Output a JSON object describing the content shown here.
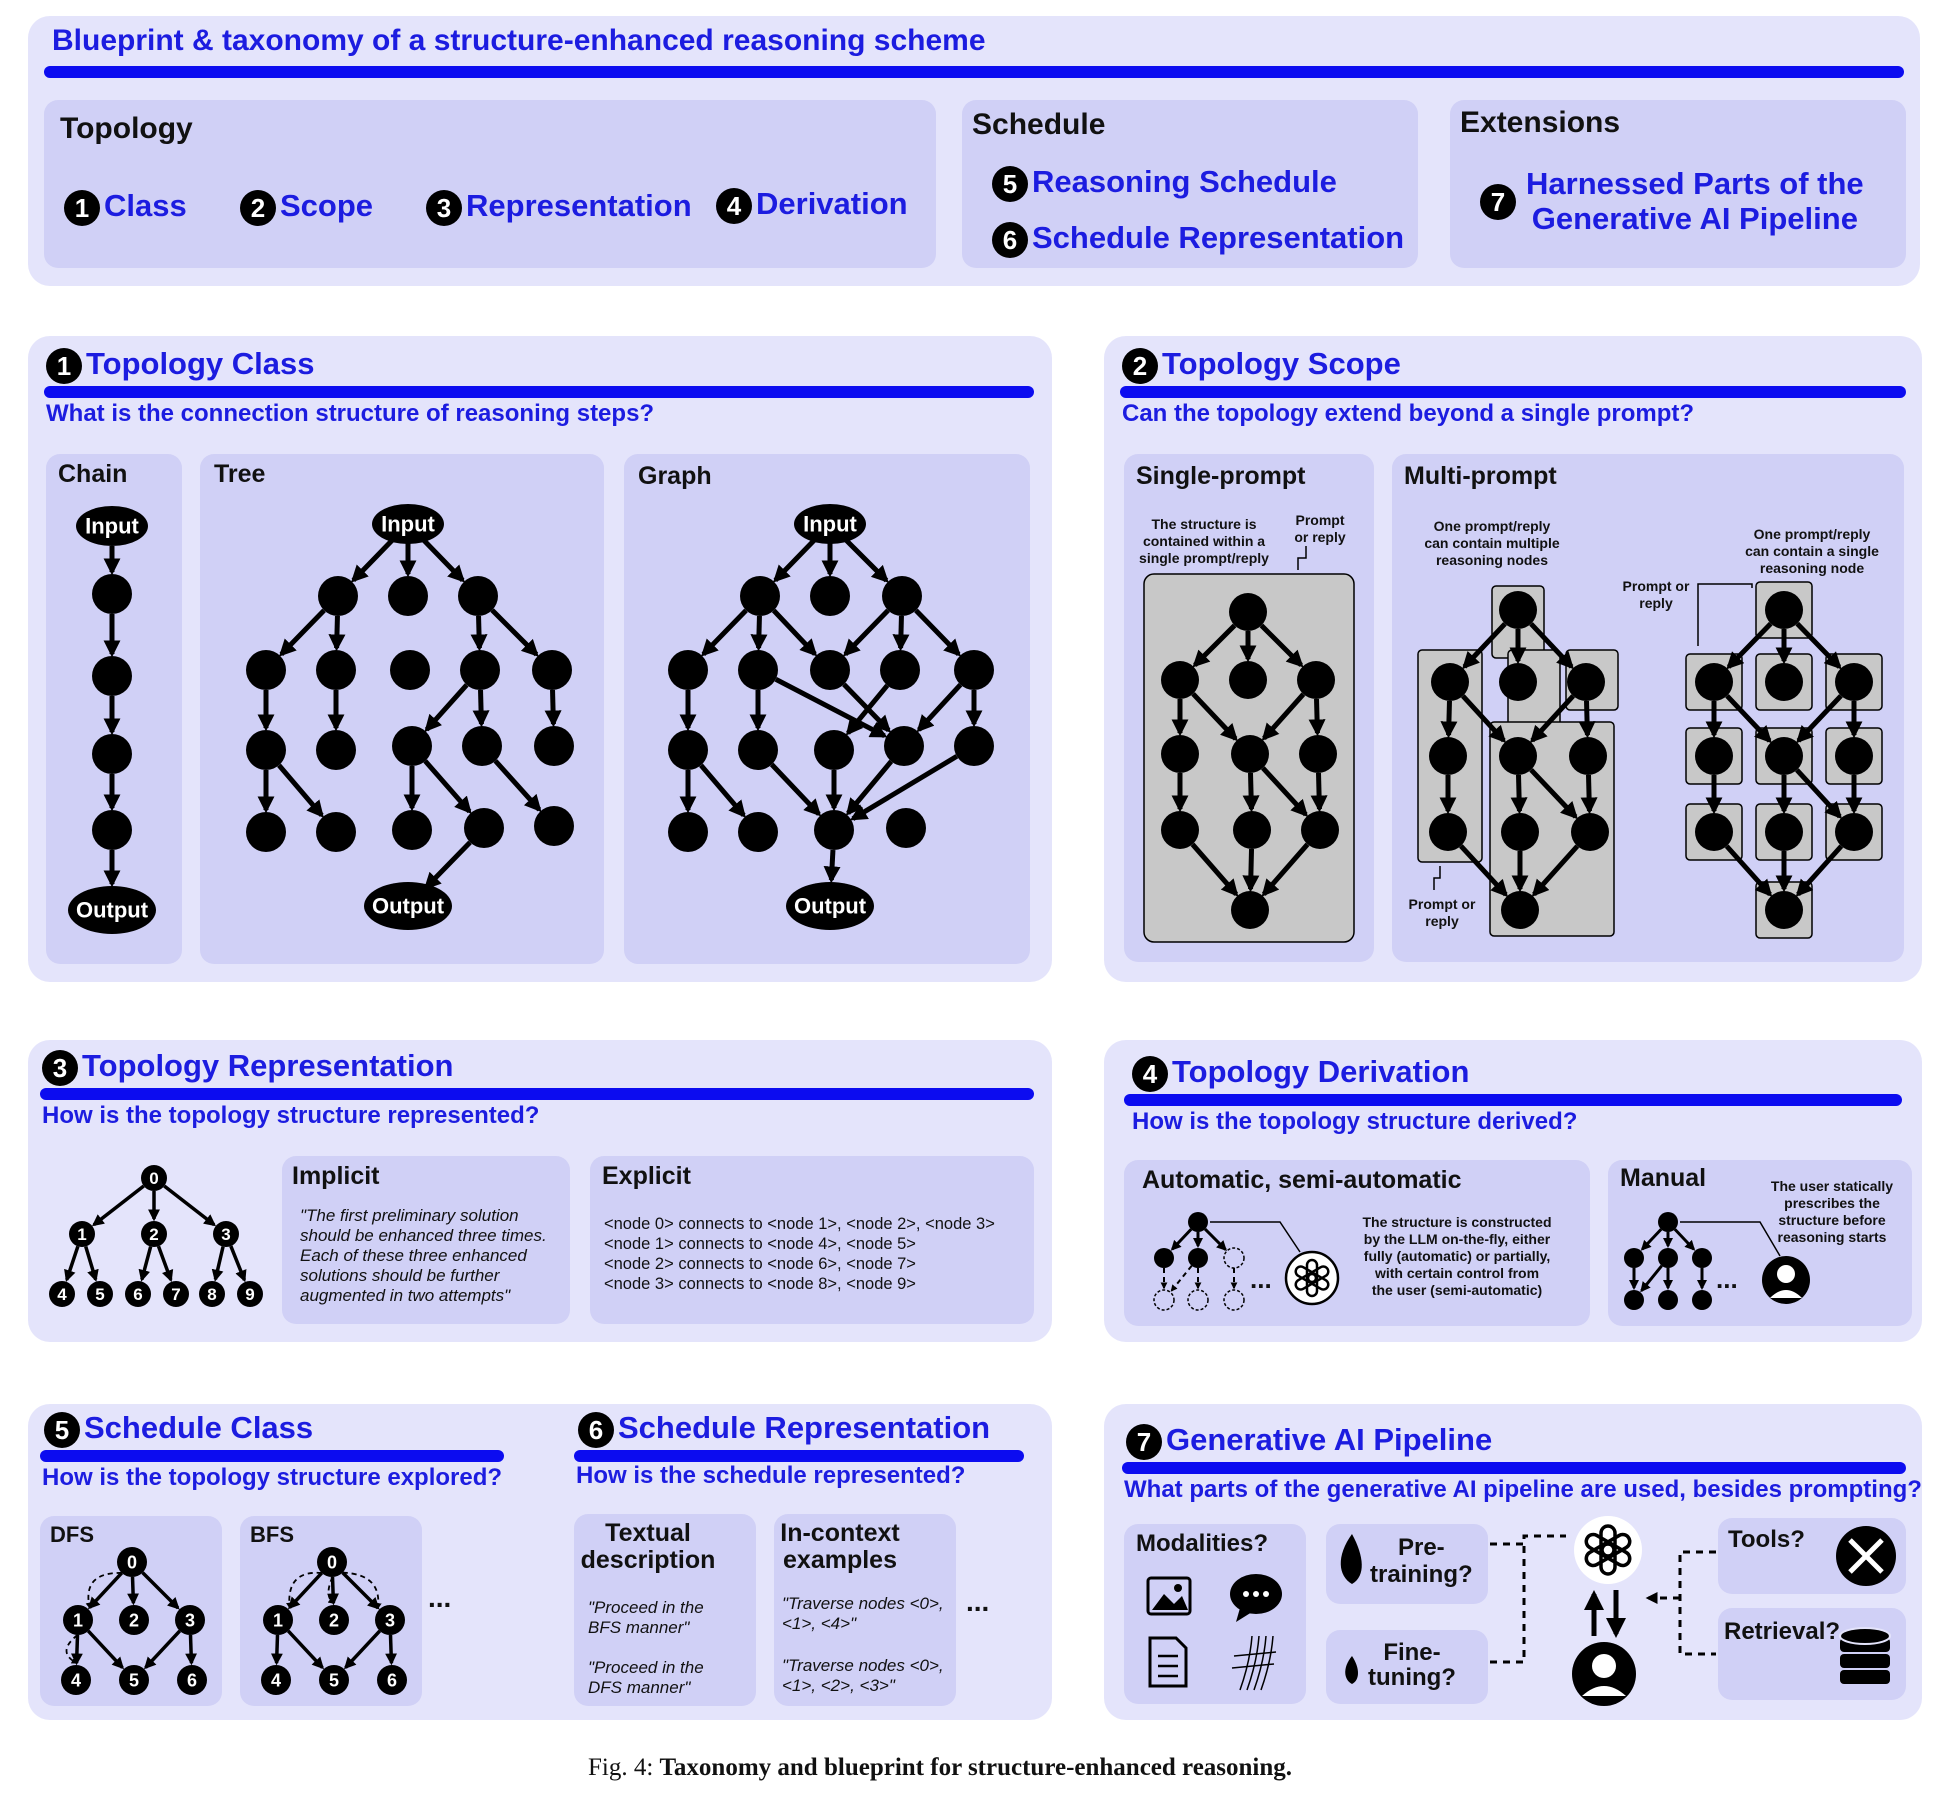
{
  "blueprint": {
    "title": "Blueprint & taxonomy of a structure-enhanced reasoning scheme",
    "topology": {
      "label": "Topology",
      "items": [
        {
          "n": "1",
          "text": "Class"
        },
        {
          "n": "2",
          "text": "Scope"
        },
        {
          "n": "3",
          "text": "Representation"
        },
        {
          "n": "4",
          "text": "Derivation"
        }
      ]
    },
    "schedule": {
      "label": "Schedule",
      "items": [
        {
          "n": "5",
          "text": "Reasoning Schedule"
        },
        {
          "n": "6",
          "text": "Schedule Representation"
        }
      ]
    },
    "extensions": {
      "label": "Extensions",
      "items": [
        {
          "n": "7",
          "line1": "Harnessed Parts of the",
          "line2": "Generative AI Pipeline"
        }
      ]
    }
  },
  "p1": {
    "n": "1",
    "title": "Topology Class",
    "question": "What is the connection structure of reasoning steps?",
    "chain": "Chain",
    "tree": "Tree",
    "graph": "Graph",
    "input": "Input",
    "output": "Output"
  },
  "p2": {
    "n": "2",
    "title": "Topology Scope",
    "question": "Can the topology extend beyond a single prompt?",
    "single": "Single-prompt",
    "multi": "Multi-prompt",
    "note_single_1": "The structure is",
    "note_single_2": "contained within a",
    "note_single_3": "single prompt/reply",
    "prompt_reply_1": "Prompt",
    "prompt_reply_2": "or reply",
    "note_multi_a1": "One prompt/reply",
    "note_multi_a2": "can contain multiple",
    "note_multi_a3": "reasoning nodes",
    "note_multi_b1": "One prompt/reply",
    "note_multi_b2": "can contain a single",
    "note_multi_b3": "reasoning node",
    "prompt_or_1": "Prompt or",
    "prompt_or_2": "reply"
  },
  "p3": {
    "n": "3",
    "title": "Topology Representation",
    "question": "How is the topology structure represented?",
    "implicit": "Implicit",
    "implicit_text": [
      "\"The first preliminary solution",
      "should be enhanced three times.",
      "Each of these three enhanced",
      "solutions should be further",
      "augmented in two attempts\""
    ],
    "explicit": "Explicit",
    "explicit_text": [
      "<node 0> connects to <node 1>, <node 2>, <node 3>",
      "<node 1> connects to <node 4>, <node 5>",
      "<node 2> connects to <node 6>, <node 7>",
      "<node 3> connects to <node 8>, <node 9>"
    ],
    "tree_nodes": [
      "0",
      "1",
      "2",
      "3",
      "4",
      "5",
      "6",
      "7",
      "8",
      "9"
    ]
  },
  "p4": {
    "n": "4",
    "title": "Topology Derivation",
    "question": "How is the topology structure derived?",
    "auto": "Automatic, semi-automatic",
    "auto_text": [
      "The structure is constructed",
      "by the LLM on-the-fly, either",
      "fully (automatic) or partially,",
      "with certain control from",
      "the user (semi-automatic)"
    ],
    "manual": "Manual",
    "manual_text": [
      "The user statically",
      "prescribes the",
      "structure before",
      "reasoning starts"
    ],
    "ellipsis": "..."
  },
  "p5": {
    "n": "5",
    "title": "Schedule Class",
    "question": "How is the topology structure explored?",
    "dfs": "DFS",
    "bfs": "BFS",
    "ellipsis": "...",
    "nodes": [
      "0",
      "1",
      "2",
      "3",
      "4",
      "5",
      "6"
    ]
  },
  "p6": {
    "n": "6",
    "title": "Schedule Representation",
    "question": "How is the schedule represented?",
    "textual_1": "Textual",
    "textual_2": "description",
    "textual_a": [
      "\"Proceed in the",
      "BFS manner\""
    ],
    "textual_b": [
      "\"Proceed in the",
      "DFS manner\""
    ],
    "incontext_1": "In-context",
    "incontext_2": "examples",
    "incontext_a": [
      "\"Traverse nodes <0>,",
      "<1>, <4>\""
    ],
    "incontext_b": [
      "\"Traverse nodes <0>,",
      "<1>, <2>, <3>\""
    ],
    "ellipsis": "..."
  },
  "p7": {
    "n": "7",
    "title": "Generative AI Pipeline",
    "question": "What parts of the generative AI pipeline are used, besides prompting?",
    "modalities": "Modalities?",
    "pre_1": "Pre-",
    "pre_2": "training?",
    "fine_1": "Fine-",
    "fine_2": "tuning?",
    "tools": "Tools?",
    "retrieval": "Retrieval?"
  },
  "caption": {
    "prefix": "Fig. 4: ",
    "text": "Taxonomy and blueprint for structure-enhanced reasoning."
  },
  "colors": {
    "accent": "#1c1ce0",
    "bar": "#0c0cf0",
    "panel": "#e4e4fb",
    "subpanel": "#d0d0f6",
    "grey": "#c8c8c8"
  }
}
